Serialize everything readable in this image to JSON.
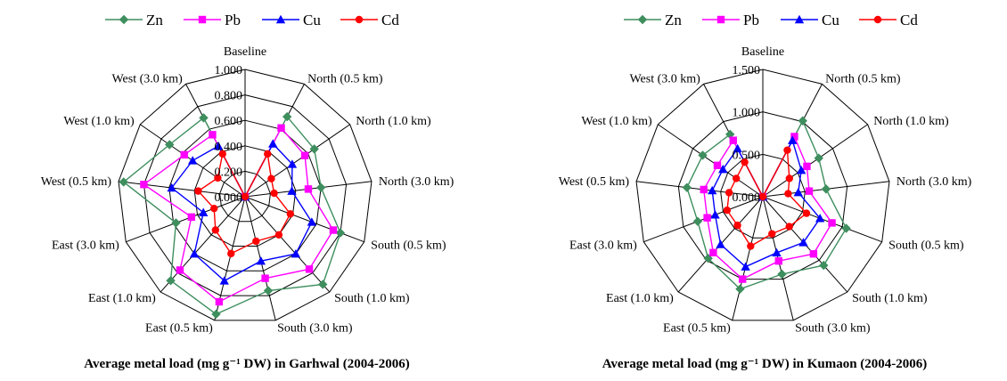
{
  "chart_data": [
    {
      "type": "radar",
      "caption": "Average metal load (mg g⁻¹ DW) in Garhwal (2004-2006)",
      "categories": [
        "Baseline",
        "North (0.5 km)",
        "North (1.0 km)",
        "North (3.0 km)",
        "South (0.5 km)",
        "South (1.0 km)",
        "South (3.0 km)",
        "East (0.5 km)",
        "East (1.0 km)",
        "East (3.0 km)",
        "West (0.5 km)",
        "West (1.0 km)",
        "West (3.0 km)"
      ],
      "rlim": [
        0,
        1.0
      ],
      "ticks": [
        "0.000",
        "0.200",
        "0.400",
        "0.600",
        "0.800",
        "1.000"
      ],
      "tick_values": [
        0,
        0.2,
        0.4,
        0.6,
        0.8,
        1.0
      ],
      "legend": "top",
      "series": [
        {
          "name": "Zn",
          "color": "#3e8e5e",
          "marker": "diamond",
          "values": [
            0.0,
            0.71,
            0.66,
            0.6,
            0.8,
            0.92,
            0.76,
            0.95,
            0.88,
            0.58,
            0.96,
            0.72,
            0.7
          ]
        },
        {
          "name": "Pb",
          "color": "#ff00ff",
          "marker": "square",
          "values": [
            0.0,
            0.61,
            0.57,
            0.5,
            0.74,
            0.76,
            0.66,
            0.85,
            0.77,
            0.45,
            0.8,
            0.58,
            0.55
          ]
        },
        {
          "name": "Cu",
          "color": "#0000ff",
          "marker": "triangle",
          "values": [
            0.0,
            0.47,
            0.45,
            0.37,
            0.56,
            0.6,
            0.52,
            0.68,
            0.6,
            0.35,
            0.58,
            0.5,
            0.45
          ]
        },
        {
          "name": "Cd",
          "color": "#ff0000",
          "marker": "circle",
          "values": [
            0.0,
            0.38,
            0.25,
            0.23,
            0.38,
            0.4,
            0.36,
            0.46,
            0.35,
            0.26,
            0.37,
            0.26,
            0.38
          ]
        }
      ]
    },
    {
      "type": "radar",
      "caption": "Average metal load (mg g⁻¹ DW) in Kumaon (2004-2006)",
      "categories": [
        "Baseline",
        "North (0.5 km)",
        "North (1.0 km)",
        "North (3.0 km)",
        "South (0.5 km)",
        "South (1.0 km)",
        "South (3.0 km)",
        "East (0.5 km)",
        "East (1.0 km)",
        "East (3.0 km)",
        "West (0.5 km)",
        "West (1.0 km)",
        "West (3.0 km)"
      ],
      "rlim": [
        0,
        1.5
      ],
      "ticks": [
        "0.000",
        "0.500",
        "1.000",
        "1.500"
      ],
      "tick_values": [
        0,
        0.5,
        1.0,
        1.5
      ],
      "legend": "top",
      "series": [
        {
          "name": "Zn",
          "color": "#3e8e5e",
          "marker": "diamond",
          "values": [
            0.0,
            1.01,
            0.8,
            0.75,
            1.05,
            1.08,
            0.94,
            1.12,
            0.97,
            0.82,
            0.9,
            0.86,
            0.83
          ]
        },
        {
          "name": "Pb",
          "color": "#ff00ff",
          "marker": "square",
          "values": [
            0.0,
            0.8,
            0.63,
            0.55,
            0.87,
            0.9,
            0.78,
            1.0,
            0.88,
            0.7,
            0.7,
            0.65,
            0.75
          ]
        },
        {
          "name": "Cu",
          "color": "#0000ff",
          "marker": "triangle",
          "values": [
            0.0,
            0.75,
            0.55,
            0.42,
            0.72,
            0.72,
            0.68,
            0.85,
            0.75,
            0.6,
            0.6,
            0.57,
            0.64
          ]
        },
        {
          "name": "Cd",
          "color": "#ff0000",
          "marker": "circle",
          "values": [
            0.0,
            0.62,
            0.38,
            0.3,
            0.55,
            0.47,
            0.45,
            0.6,
            0.45,
            0.45,
            0.4,
            0.38,
            0.46
          ]
        }
      ]
    }
  ]
}
